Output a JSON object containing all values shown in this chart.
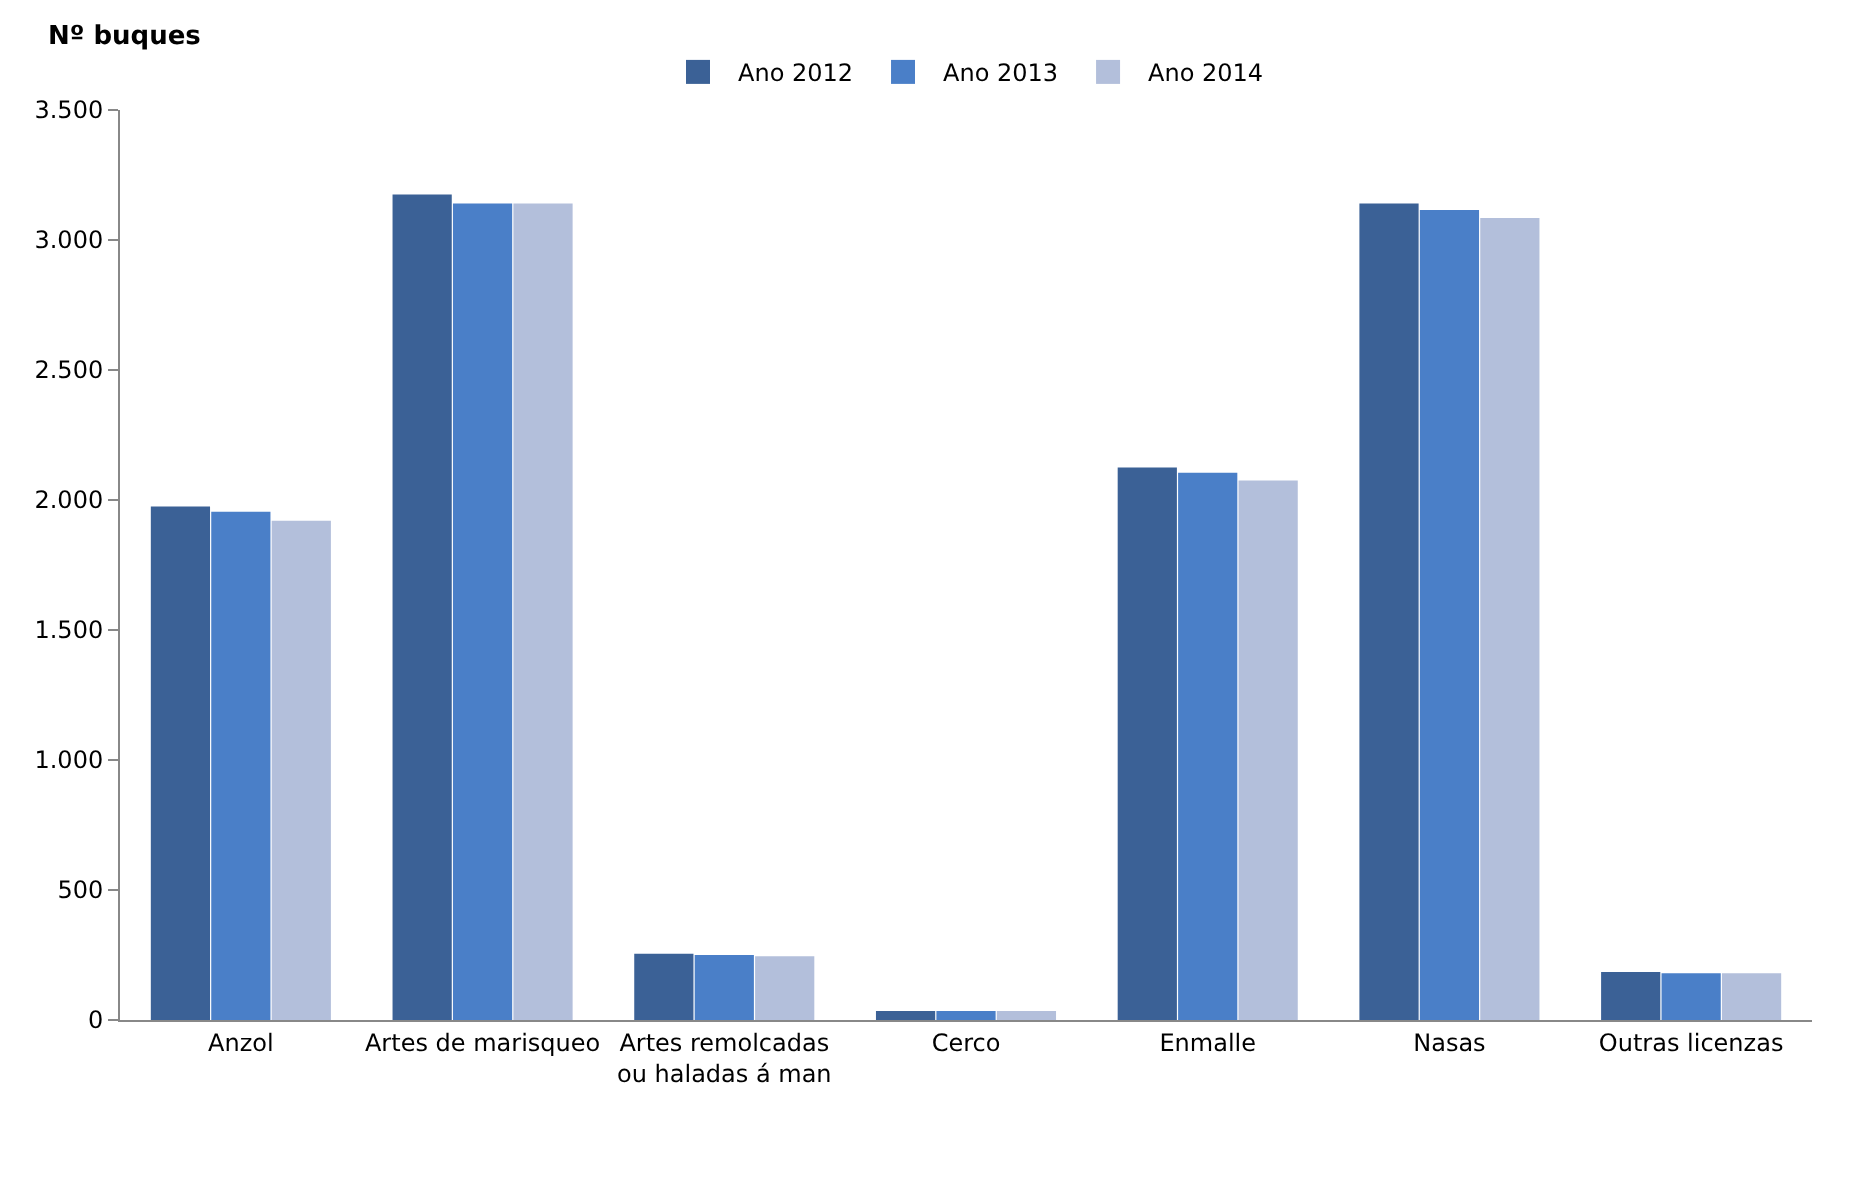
{
  "chart_data": {
    "type": "bar",
    "ylabel": "Nº buques",
    "categories": [
      "Anzol",
      "Artes de marisqueo",
      "Artes remolcadas ou haladas á man",
      "Cerco",
      "Enmalle",
      "Nasas",
      "Outras licenzas"
    ],
    "series": [
      {
        "name": "Ano 2012",
        "color": "#3b6196",
        "values": [
          1975,
          3175,
          255,
          35,
          2125,
          3140,
          185
        ]
      },
      {
        "name": "Ano 2013",
        "color": "#4a7fc8",
        "values": [
          1955,
          3140,
          250,
          35,
          2105,
          3115,
          180
        ]
      },
      {
        "name": "Ano 2014",
        "color": "#b3bfdb",
        "values": [
          1920,
          3140,
          245,
          35,
          2075,
          3085,
          180
        ]
      }
    ],
    "ylim": [
      0,
      3500
    ],
    "yticks": [
      {
        "value": 0,
        "label": "0"
      },
      {
        "value": 500,
        "label": "500"
      },
      {
        "value": 1000,
        "label": "1.000"
      },
      {
        "value": 1500,
        "label": "1.500"
      },
      {
        "value": 2000,
        "label": "2.000"
      },
      {
        "value": 2500,
        "label": "2.500"
      },
      {
        "value": 3000,
        "label": "3.000"
      },
      {
        "value": 3500,
        "label": "3.500"
      }
    ],
    "legend": "top"
  }
}
